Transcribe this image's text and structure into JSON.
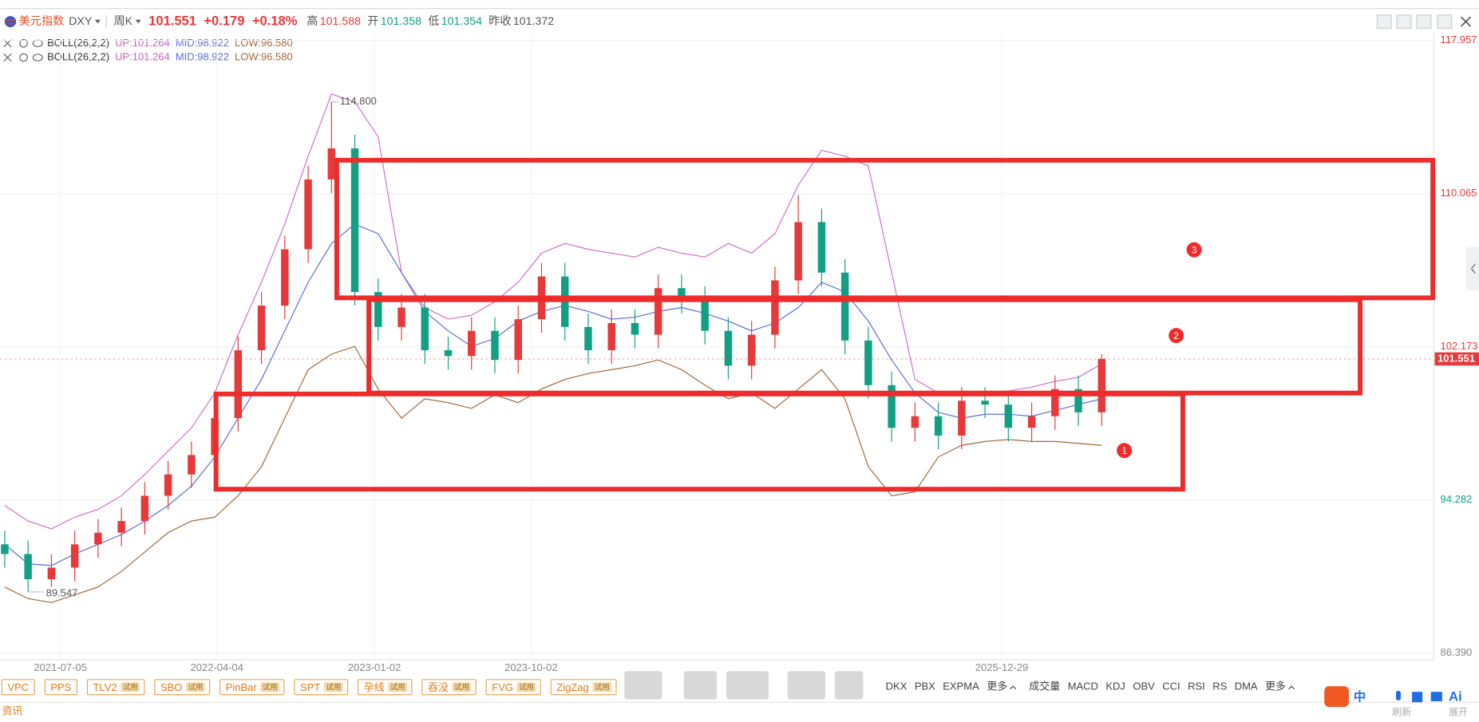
{
  "header": {
    "name": "美元指数",
    "code": "DXY",
    "period": "周K",
    "price": "101.551",
    "change": "+0.179",
    "change_pct": "+0.18%",
    "stats": [
      {
        "label": "高",
        "value": "101.588"
      },
      {
        "label": "开",
        "value": "101.358"
      },
      {
        "label": "低",
        "value": "101.354"
      },
      {
        "label": "昨收",
        "value": "101.372"
      }
    ]
  },
  "indicators": [
    {
      "name": "BOLL(26,2,2)",
      "up": "UP:101.264",
      "mid": "MID:98.922",
      "low": "LOW:96.580"
    },
    {
      "name": "BOLL(26,2,2)",
      "up": "UP:101.264",
      "mid": "MID:98.922",
      "low": "LOW:96.580"
    }
  ],
  "chart_data": {
    "type": "candlestick",
    "open": [
      92.0,
      91.5,
      90.2,
      90.8,
      92.0,
      92.6,
      93.2,
      94.5,
      95.6,
      96.6,
      98.5,
      102.0,
      104.3,
      107.2,
      110.8,
      112.4,
      105.0,
      103.2,
      104.2,
      102.0,
      101.7,
      103.0,
      101.5,
      103.6,
      105.8,
      103.2,
      102.0,
      103.4,
      102.8,
      105.2,
      104.6,
      103.0,
      101.2,
      102.8,
      105.6,
      108.6,
      106.0,
      102.5,
      100.2,
      98.0,
      98.6,
      97.6,
      99.4,
      99.2,
      98.0,
      98.6,
      100.0,
      98.8
    ],
    "high": [
      92.7,
      92.2,
      91.5,
      92.7,
      93.3,
      93.9,
      95.2,
      96.3,
      97.3,
      99.2,
      102.7,
      105.0,
      107.9,
      111.5,
      114.8,
      113.1,
      105.7,
      104.9,
      104.9,
      102.7,
      103.7,
      103.7,
      104.3,
      106.5,
      106.5,
      103.9,
      104.1,
      104.1,
      105.9,
      105.9,
      105.3,
      103.7,
      103.5,
      106.3,
      110.0,
      109.3,
      106.7,
      103.2,
      100.9,
      99.3,
      99.3,
      100.1,
      100.1,
      99.9,
      99.3,
      100.7,
      100.7,
      101.8
    ],
    "low": [
      90.8,
      89.547,
      89.8,
      90.1,
      91.3,
      91.9,
      92.5,
      93.8,
      94.9,
      95.9,
      97.8,
      101.3,
      103.6,
      106.5,
      110.1,
      104.3,
      102.5,
      102.5,
      101.3,
      101.0,
      101.0,
      100.8,
      100.8,
      102.9,
      102.5,
      101.3,
      101.3,
      102.1,
      102.1,
      103.9,
      102.3,
      100.5,
      100.5,
      102.1,
      104.9,
      105.3,
      101.8,
      99.5,
      97.3,
      97.3,
      96.9,
      96.9,
      98.5,
      97.3,
      97.3,
      97.9,
      98.1,
      98.1
    ],
    "close": [
      91.5,
      90.2,
      90.8,
      92.0,
      92.6,
      93.2,
      94.5,
      95.6,
      96.6,
      98.5,
      102.0,
      104.3,
      107.2,
      110.8,
      112.4,
      105.0,
      103.2,
      104.2,
      102.0,
      101.7,
      103.0,
      101.5,
      103.6,
      105.8,
      103.2,
      102.0,
      103.4,
      102.8,
      105.2,
      104.6,
      103.0,
      101.2,
      102.8,
      105.6,
      108.6,
      106.0,
      102.5,
      100.2,
      98.0,
      98.6,
      97.6,
      99.4,
      99.2,
      98.0,
      98.6,
      100.0,
      98.8,
      101.551
    ],
    "series": [
      {
        "color": "#d06fc6",
        "values": [
          94.0,
          93.2,
          92.8,
          93.4,
          93.8,
          94.5,
          95.6,
          96.8,
          98.0,
          99.8,
          102.8,
          105.5,
          108.5,
          112.0,
          115.2,
          114.8,
          113.0,
          106.0,
          104.2,
          103.6,
          103.8,
          104.5,
          105.5,
          107.0,
          107.5,
          107.2,
          107.0,
          106.8,
          107.3,
          107.0,
          106.8,
          107.5,
          107.0,
          108.0,
          110.5,
          112.3,
          112.0,
          111.5,
          106.0,
          100.5,
          99.8,
          99.8,
          99.8,
          99.9,
          100.1,
          100.4,
          100.6,
          101.3
        ]
      },
      {
        "color": "#5b6fd8",
        "values": [
          92.0,
          91.0,
          90.9,
          91.5,
          92.0,
          92.5,
          93.2,
          94.0,
          95.0,
          96.5,
          98.5,
          100.5,
          103.0,
          105.5,
          107.5,
          108.5,
          108.0,
          106.0,
          104.0,
          103.0,
          102.2,
          102.6,
          103.5,
          104.0,
          104.3,
          104.0,
          103.6,
          103.7,
          104.0,
          104.2,
          103.9,
          103.5,
          103.0,
          103.4,
          104.2,
          105.5,
          105.0,
          103.5,
          101.5,
          99.8,
          98.8,
          98.5,
          98.7,
          98.7,
          98.6,
          98.9,
          99.2,
          99.5
        ]
      },
      {
        "color": "#a2683a",
        "values": [
          89.8,
          89.2,
          89.0,
          89.4,
          89.8,
          90.6,
          91.6,
          92.6,
          93.2,
          93.4,
          94.5,
          96.0,
          98.5,
          101.0,
          101.8,
          102.2,
          100.0,
          98.5,
          99.5,
          99.3,
          99.0,
          99.7,
          99.3,
          100.0,
          100.5,
          100.8,
          101.0,
          101.2,
          101.5,
          101.0,
          100.2,
          99.5,
          99.8,
          99.0,
          100.0,
          101.0,
          99.5,
          96.0,
          94.5,
          94.7,
          96.5,
          97.1,
          97.3,
          97.4,
          97.3,
          97.3,
          97.2,
          97.1
        ]
      }
    ],
    "up_color": "#e8393a",
    "down_color": "#12a085",
    "ylim": [
      86.39,
      117.957
    ],
    "yticks": [
      117.957,
      110.065,
      102.173,
      94.282,
      {
        "value": 86.39,
        "label": "86.390"
      }
    ],
    "x_labels": [
      "2021-07-05",
      "2022-04-04",
      "2023-01-02",
      "2023-10-02",
      "2025-12-29"
    ],
    "last_price": {
      "value": 101.551,
      "label": "101.551"
    },
    "peak_label": "114.800",
    "low_label": "89.547",
    "grid": true
  },
  "annotations": [
    "3",
    "2",
    "1"
  ],
  "toolbar": {
    "patterns": [
      {
        "label": "VPC"
      },
      {
        "label": "PPS"
      },
      {
        "label": "TLV2",
        "badge": "试用"
      },
      {
        "label": "SBO",
        "badge": "试用"
      },
      {
        "label": "PinBar",
        "badge": "试用"
      },
      {
        "label": "SPT",
        "badge": "试用"
      },
      {
        "label": "孕线",
        "badge": "试用"
      },
      {
        "label": "吞没",
        "badge": "试用"
      },
      {
        "label": "FVG",
        "badge": "试用"
      },
      {
        "label": "ZigZag",
        "badge": "试用"
      }
    ],
    "main_indicators": [
      "DKX",
      "PBX",
      "EXPMA",
      "更多"
    ],
    "sub_indicators": [
      "成交量",
      "MACD",
      "KDJ",
      "OBV",
      "CCI",
      "RSI",
      "RS",
      "DMA",
      "更多"
    ],
    "news": "资讯"
  },
  "ime": {
    "lang": "中",
    "ai": "Ai",
    "refresh": "刷新",
    "expand": "展开"
  }
}
